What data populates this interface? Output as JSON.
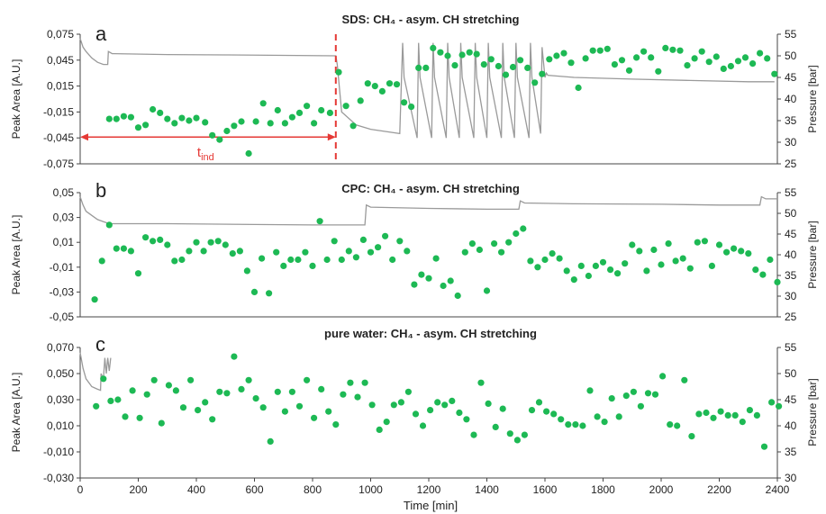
{
  "colors": {
    "points": "#1db954",
    "pressure": "#9a9a9a",
    "tind": "#e53935",
    "axis": "#333333"
  },
  "xaxis": {
    "label": "Time [min]",
    "ticks": [
      "0",
      "200",
      "400",
      "600",
      "800",
      "1000",
      "1200",
      "1400",
      "1600",
      "1800",
      "2000",
      "2200",
      "2400"
    ],
    "xlim": [
      0,
      2400
    ]
  },
  "chart_data": [
    {
      "type": "scatter",
      "panel_letter": "a",
      "title": "SDS: CH₄ - asym. CH stretching",
      "ylabel": "Peak Area [A.U.]",
      "y2label": "Pressure [bar]",
      "ylim": [
        -0.075,
        0.075
      ],
      "y_ticks": [
        "0,075",
        "0,045",
        "0,015",
        "-0,015",
        "-0,045",
        "-0,075"
      ],
      "y2lim": [
        25,
        55
      ],
      "y2_ticks": [
        "55",
        "50",
        "45",
        "40",
        "35",
        "30",
        "25"
      ],
      "annotation": {
        "text": "t",
        "subscript": "ind",
        "x_start": 0,
        "x_end": 880,
        "y": -0.044
      },
      "series": [
        {
          "role": "peak_area",
          "x": [
            100,
            125,
            150,
            175,
            200,
            225,
            250,
            275,
            300,
            325,
            350,
            375,
            400,
            430,
            455,
            480,
            505,
            530,
            555,
            580,
            605,
            630,
            655,
            680,
            705,
            730,
            755,
            780,
            805,
            830,
            860,
            890,
            915,
            940,
            965,
            990,
            1015,
            1040,
            1065,
            1090,
            1115,
            1140,
            1165,
            1190,
            1215,
            1240,
            1265,
            1290,
            1315,
            1340,
            1365,
            1390,
            1415,
            1440,
            1465,
            1490,
            1515,
            1540,
            1565,
            1590,
            1615,
            1640,
            1665,
            1690,
            1715,
            1740,
            1765,
            1790,
            1815,
            1840,
            1865,
            1890,
            1915,
            1940,
            1965,
            1990,
            2015,
            2040,
            2065,
            2090,
            2115,
            2140,
            2165,
            2190,
            2215,
            2240,
            2265,
            2290,
            2315,
            2340,
            2365,
            2390
          ],
          "y": [
            -0.023,
            -0.023,
            -0.02,
            -0.021,
            -0.033,
            -0.03,
            -0.012,
            -0.016,
            -0.023,
            -0.028,
            -0.022,
            -0.025,
            -0.022,
            -0.027,
            -0.042,
            -0.047,
            -0.037,
            -0.031,
            -0.026,
            -0.063,
            -0.026,
            -0.005,
            -0.028,
            -0.013,
            -0.028,
            -0.021,
            -0.016,
            -0.008,
            -0.028,
            -0.013,
            -0.016,
            0.031,
            -0.008,
            -0.031,
            -0.002,
            0.018,
            0.015,
            0.009,
            0.018,
            0.017,
            -0.004,
            -0.009,
            0.036,
            0.036,
            0.059,
            0.054,
            0.05,
            0.039,
            0.051,
            0.054,
            0.052,
            0.04,
            0.046,
            0.038,
            0.028,
            0.037,
            0.045,
            0.036,
            0.019,
            0.029,
            0.046,
            0.05,
            0.053,
            0.042,
            0.013,
            0.047,
            0.056,
            0.056,
            0.058,
            0.04,
            0.045,
            0.033,
            0.048,
            0.055,
            0.048,
            0.032,
            0.059,
            0.057,
            0.056,
            0.039,
            0.047,
            0.055,
            0.043,
            0.049,
            0.035,
            0.038,
            0.044,
            0.048,
            0.041,
            0.053,
            0.047,
            0.029
          ]
        },
        {
          "role": "pressure",
          "x": [
            0,
            10,
            20,
            40,
            60,
            80,
            95,
            97,
            110,
            300,
            500,
            700,
            880,
            885,
            900,
            950,
            1000,
            1050,
            1100,
            1110,
            1115,
            1160,
            1165,
            1170,
            1210,
            1215,
            1220,
            1260,
            1265,
            1270,
            1305,
            1310,
            1315,
            1355,
            1360,
            1365,
            1400,
            1405,
            1410,
            1450,
            1455,
            1460,
            1495,
            1500,
            1505,
            1545,
            1550,
            1555,
            1585,
            1590,
            1600,
            1605,
            1610,
            1700,
            1900,
            2100,
            2300,
            2390
          ],
          "y": [
            54,
            52,
            51,
            49.5,
            48.5,
            48,
            48,
            51,
            50.5,
            50.3,
            50.2,
            50.1,
            50,
            48,
            37,
            34,
            33,
            32.5,
            32,
            53,
            45,
            31,
            53,
            45,
            31,
            53,
            45,
            31,
            53,
            45,
            31,
            53,
            45,
            31,
            53,
            45,
            31,
            53,
            45,
            31,
            53,
            45,
            31,
            53,
            45,
            31,
            53,
            45,
            32,
            52,
            45,
            46,
            45.5,
            45,
            44.6,
            44.3,
            44,
            44
          ]
        }
      ]
    },
    {
      "type": "scatter",
      "panel_letter": "b",
      "title": "CPC: CH₄ - asym. CH stretching",
      "ylabel": "Peak Area [A.U.]",
      "y2label": "Pressure [bar]",
      "ylim": [
        -0.05,
        0.05
      ],
      "y_ticks": [
        "0,05",
        "0,03",
        "0,01",
        "-0,01",
        "-0,03",
        "-0,05"
      ],
      "y2lim": [
        25,
        55
      ],
      "y2_ticks": [
        "55",
        "50",
        "45",
        "40",
        "35",
        "30",
        "25"
      ],
      "series": [
        {
          "role": "peak_area",
          "x": [
            50,
            75,
            100,
            125,
            150,
            175,
            200,
            225,
            250,
            275,
            300,
            325,
            350,
            375,
            400,
            425,
            450,
            475,
            500,
            525,
            550,
            575,
            600,
            625,
            650,
            675,
            700,
            725,
            750,
            775,
            800,
            825,
            850,
            875,
            900,
            925,
            950,
            975,
            1000,
            1025,
            1050,
            1075,
            1100,
            1125,
            1150,
            1175,
            1200,
            1225,
            1250,
            1275,
            1300,
            1325,
            1350,
            1375,
            1400,
            1425,
            1450,
            1475,
            1500,
            1525,
            1550,
            1575,
            1600,
            1625,
            1650,
            1675,
            1700,
            1725,
            1750,
            1775,
            1800,
            1825,
            1850,
            1875,
            1900,
            1925,
            1950,
            1975,
            2000,
            2025,
            2050,
            2075,
            2100,
            2125,
            2150,
            2175,
            2200,
            2225,
            2250,
            2275,
            2300,
            2325,
            2350,
            2375,
            2400
          ],
          "y": [
            -0.036,
            -0.005,
            0.024,
            0.005,
            0.005,
            0.003,
            -0.015,
            0.014,
            0.011,
            0.012,
            0.008,
            -0.005,
            -0.004,
            0.003,
            0.01,
            0.003,
            0.01,
            0.011,
            0.008,
            0.001,
            0.003,
            -0.013,
            -0.03,
            -0.003,
            -0.031,
            0.002,
            -0.009,
            -0.004,
            -0.004,
            0.002,
            -0.009,
            0.027,
            -0.004,
            0.011,
            -0.004,
            0.003,
            -0.002,
            0.012,
            0.002,
            0.006,
            0.015,
            -0.004,
            0.011,
            0.003,
            -0.024,
            -0.016,
            -0.019,
            -0.003,
            -0.025,
            -0.021,
            -0.033,
            0.002,
            0.009,
            0.004,
            -0.029,
            0.009,
            0.002,
            0.01,
            0.017,
            0.021,
            -0.005,
            -0.01,
            -0.004,
            0.001,
            -0.003,
            -0.013,
            -0.02,
            -0.009,
            -0.017,
            -0.009,
            -0.006,
            -0.012,
            -0.015,
            -0.007,
            0.008,
            0.003,
            -0.013,
            0.004,
            -0.008,
            0.009,
            -0.005,
            -0.003,
            -0.011,
            0.01,
            0.011,
            -0.009,
            0.008,
            0.002,
            0.005,
            0.003,
            0.001,
            -0.012,
            -0.016,
            -0.004,
            -0.022
          ]
        },
        {
          "role": "pressure",
          "x": [
            0,
            10,
            20,
            40,
            60,
            80,
            100,
            300,
            600,
            800,
            980,
            985,
            1000,
            1200,
            1400,
            1510,
            1515,
            1530,
            1700,
            2000,
            2200,
            2340,
            2345,
            2360,
            2400
          ],
          "y": [
            54,
            52,
            50.5,
            49.5,
            48.5,
            48,
            47.5,
            47.5,
            47.3,
            47.2,
            47.2,
            52,
            51.5,
            51.2,
            51,
            51,
            53,
            52.5,
            52.3,
            52.2,
            52,
            52,
            54,
            53.5,
            53.5
          ]
        }
      ]
    },
    {
      "type": "scatter",
      "panel_letter": "c",
      "title": "pure water: CH₄ - asym. CH stretching",
      "ylabel": "Peak Area [A.U.]",
      "y2label": "Pressure [bar]",
      "ylim": [
        -0.03,
        0.07
      ],
      "y_ticks": [
        "0,070",
        "0,050",
        "0,030",
        "0,010",
        "-0,010",
        "-0,030"
      ],
      "y2lim": [
        30,
        55
      ],
      "y2_ticks": [
        "55",
        "50",
        "45",
        "40",
        "35",
        "30"
      ],
      "series": [
        {
          "role": "peak_area",
          "x": [
            55,
            80,
            105,
            130,
            155,
            180,
            205,
            230,
            255,
            280,
            305,
            330,
            355,
            380,
            405,
            430,
            455,
            480,
            505,
            530,
            555,
            580,
            605,
            630,
            655,
            680,
            705,
            730,
            755,
            780,
            805,
            830,
            855,
            880,
            905,
            930,
            955,
            980,
            1005,
            1030,
            1055,
            1080,
            1105,
            1130,
            1155,
            1180,
            1205,
            1230,
            1255,
            1280,
            1305,
            1330,
            1355,
            1380,
            1405,
            1430,
            1455,
            1480,
            1505,
            1530,
            1555,
            1580,
            1605,
            1630,
            1655,
            1680,
            1705,
            1730,
            1755,
            1780,
            1805,
            1830,
            1855,
            1880,
            1905,
            1930,
            1955,
            1980,
            2005,
            2030,
            2055,
            2080,
            2105,
            2130,
            2155,
            2180,
            2205,
            2230,
            2255,
            2280,
            2305,
            2330,
            2355,
            2380,
            2405
          ],
          "y": [
            0.025,
            0.046,
            0.029,
            0.03,
            0.017,
            0.037,
            0.016,
            0.034,
            0.045,
            0.012,
            0.041,
            0.037,
            0.024,
            0.045,
            0.022,
            0.028,
            0.015,
            0.036,
            0.035,
            0.063,
            0.038,
            0.045,
            0.031,
            0.024,
            -0.002,
            0.036,
            0.021,
            0.036,
            0.025,
            0.045,
            0.016,
            0.038,
            0.021,
            0.011,
            0.034,
            0.043,
            0.032,
            0.043,
            0.026,
            0.007,
            0.013,
            0.026,
            0.028,
            0.036,
            0.019,
            0.01,
            0.022,
            0.028,
            0.026,
            0.029,
            0.02,
            0.015,
            0.003,
            0.043,
            0.027,
            0.009,
            0.023,
            0.004,
            -0.001,
            0.003,
            0.022,
            0.028,
            0.021,
            0.019,
            0.015,
            0.011,
            0.011,
            0.01,
            0.037,
            0.017,
            0.013,
            0.031,
            0.017,
            0.033,
            0.036,
            0.025,
            0.035,
            0.034,
            0.048,
            0.011,
            0.01,
            0.045,
            0.002,
            0.019,
            0.02,
            0.016,
            0.021,
            0.018,
            0.018,
            0.013,
            0.022,
            0.018,
            -0.006,
            0.028,
            0.025
          ]
        },
        {
          "role": "pressure",
          "x": [
            0,
            10,
            20,
            40,
            60,
            70,
            72,
            80,
            85,
            90,
            95,
            100,
            105
          ],
          "y": [
            54,
            51,
            49,
            47.5,
            47,
            46.8,
            50,
            49,
            53,
            50,
            53,
            50.5,
            53
          ]
        }
      ]
    }
  ]
}
